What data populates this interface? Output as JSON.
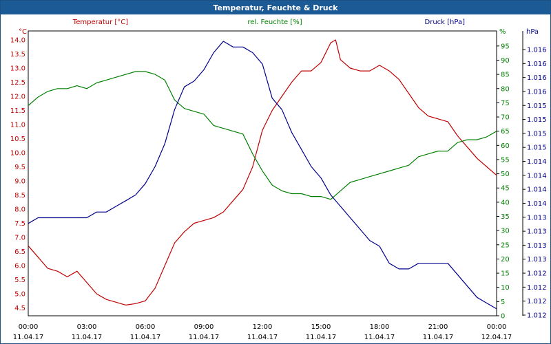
{
  "window": {
    "title": "Temperatur, Feuchte & Druck"
  },
  "colors": {
    "temperature": "#c00000",
    "humidity": "#008000",
    "pressure": "#00008b",
    "title_bar": "#1c5a96"
  },
  "chart_data": {
    "type": "line",
    "title": "Temperatur, Feuchte & Druck",
    "grid": true,
    "x": {
      "range": [
        "11.04.17 00:00",
        "12.04.17 00:00"
      ],
      "ticks": [
        {
          "time": "00:00",
          "date": "11.04.17"
        },
        {
          "time": "03:00",
          "date": "11.04.17"
        },
        {
          "time": "06:00",
          "date": "11.04.17"
        },
        {
          "time": "09:00",
          "date": "11.04.17"
        },
        {
          "time": "12:00",
          "date": "11.04.17"
        },
        {
          "time": "15:00",
          "date": "11.04.17"
        },
        {
          "time": "18:00",
          "date": "11.04.17"
        },
        {
          "time": "21:00",
          "date": "11.04.17"
        },
        {
          "time": "00:00",
          "date": "12.04.17"
        }
      ]
    },
    "axes": {
      "temperature": {
        "unit": "°C",
        "range": [
          4.25,
          14.25
        ],
        "ticks": [
          "4.5",
          "5.0",
          "5.5",
          "6.0",
          "6.5",
          "7.0",
          "7.5",
          "8.0",
          "8.5",
          "9.0",
          "9.5",
          "10.0",
          "10.5",
          "11.0",
          "11.5",
          "12.0",
          "12.5",
          "13.0",
          "13.5",
          "14.0"
        ]
      },
      "humidity": {
        "unit": "%",
        "range": [
          0,
          95
        ],
        "ticks": [
          "0",
          "5",
          "10",
          "15",
          "20",
          "25",
          "30",
          "35",
          "40",
          "45",
          "50",
          "55",
          "60",
          "65",
          "70",
          "75",
          "80",
          "85",
          "90",
          "95"
        ]
      },
      "pressure": {
        "unit": "hPa",
        "ticks": [
          "1.012",
          "1.012",
          "1.012",
          "1.012",
          "1.013",
          "1.013",
          "1.013",
          "1.013",
          "1.014",
          "1.014",
          "1.014",
          "1.014",
          "1.015",
          "1.015",
          "1.015",
          "1.015",
          "1.016",
          "1.016",
          "1.016",
          "1.016"
        ]
      }
    },
    "legend": [
      "Temperatur [°C]",
      "rel. Feuchte [%]",
      "Druck [hPa]"
    ],
    "series": [
      {
        "name": "Temperatur [°C]",
        "axis": "temperature",
        "color": "#c00000",
        "x_hours": [
          0,
          0.5,
          1,
          1.5,
          2,
          2.5,
          3,
          3.5,
          4,
          4.5,
          5,
          5.5,
          6,
          6.5,
          7,
          7.5,
          8,
          8.5,
          9,
          9.5,
          10,
          10.5,
          11,
          11.5,
          12,
          12.5,
          13,
          13.5,
          14,
          14.5,
          15,
          15.5,
          15.75,
          16,
          16.5,
          17,
          17.5,
          18,
          18.5,
          19,
          19.5,
          20,
          20.5,
          21,
          21.5,
          22,
          22.5,
          23,
          23.5,
          24
        ],
        "values": [
          6.7,
          6.3,
          5.9,
          5.8,
          5.6,
          5.8,
          5.4,
          5.0,
          4.8,
          4.7,
          4.6,
          4.65,
          4.75,
          5.2,
          6.0,
          6.8,
          7.2,
          7.5,
          7.6,
          7.7,
          7.9,
          8.3,
          8.7,
          9.5,
          10.8,
          11.5,
          12.0,
          12.5,
          12.9,
          12.9,
          13.2,
          13.9,
          14.0,
          13.3,
          13.0,
          12.9,
          12.9,
          13.1,
          12.9,
          12.6,
          12.1,
          11.6,
          11.3,
          11.2,
          11.1,
          10.6,
          10.2,
          9.8,
          9.5,
          9.2
        ]
      },
      {
        "name": "rel. Feuchte [%]",
        "axis": "humidity",
        "color": "#008000",
        "x_hours": [
          0,
          0.5,
          1,
          1.5,
          2,
          2.5,
          3,
          3.5,
          4,
          4.5,
          5,
          5.5,
          6,
          6.5,
          7,
          7.5,
          8,
          8.5,
          9,
          9.5,
          10,
          10.5,
          11,
          11.5,
          12,
          12.5,
          13,
          13.5,
          14,
          14.5,
          15,
          15.5,
          16,
          16.5,
          17,
          17.5,
          18,
          18.5,
          19,
          19.5,
          20,
          20.5,
          21,
          21.5,
          22,
          22.5,
          23,
          23.5,
          24
        ],
        "values": [
          74,
          77,
          79,
          80,
          80,
          81,
          80,
          82,
          83,
          84,
          85,
          86,
          86,
          85,
          83,
          76,
          73,
          72,
          71,
          67,
          66,
          65,
          64,
          57,
          51,
          46,
          44,
          43,
          43,
          42,
          42,
          41,
          44,
          47,
          48,
          49,
          50,
          51,
          52,
          53,
          56,
          57,
          58,
          58,
          61,
          62,
          62,
          63,
          65
        ]
      },
      {
        "name": "Druck [hPa]",
        "axis": "pressure",
        "color": "#00008b",
        "x_hours": [
          0,
          0.5,
          1,
          1.5,
          2,
          2.5,
          3,
          3.5,
          4,
          4.5,
          5,
          5.5,
          6,
          6.5,
          7,
          7.5,
          8,
          8.5,
          9,
          9.5,
          10,
          10.5,
          11,
          11.5,
          12,
          12.5,
          13,
          13.5,
          14,
          14.5,
          15,
          15.5,
          16,
          16.5,
          17,
          17.5,
          18,
          18.5,
          19,
          19.5,
          20,
          20.5,
          21,
          21.5,
          22,
          22.5,
          23,
          23.5,
          24
        ],
        "values": [
          1.0133,
          1.0134,
          1.0134,
          1.0134,
          1.0134,
          1.0134,
          1.0134,
          1.0135,
          1.0135,
          1.0136,
          1.0137,
          1.0138,
          1.014,
          1.0143,
          1.0147,
          1.0153,
          1.0157,
          1.0158,
          1.016,
          1.0163,
          1.0165,
          1.0164,
          1.0164,
          1.0163,
          1.0161,
          1.0155,
          1.0153,
          1.0149,
          1.0146,
          1.0143,
          1.0141,
          1.0138,
          1.0136,
          1.0134,
          1.0132,
          1.013,
          1.0129,
          1.0126,
          1.0125,
          1.0125,
          1.0126,
          1.0126,
          1.0126,
          1.0126,
          1.0124,
          1.0122,
          1.012,
          1.0119,
          1.0118
        ]
      }
    ]
  }
}
